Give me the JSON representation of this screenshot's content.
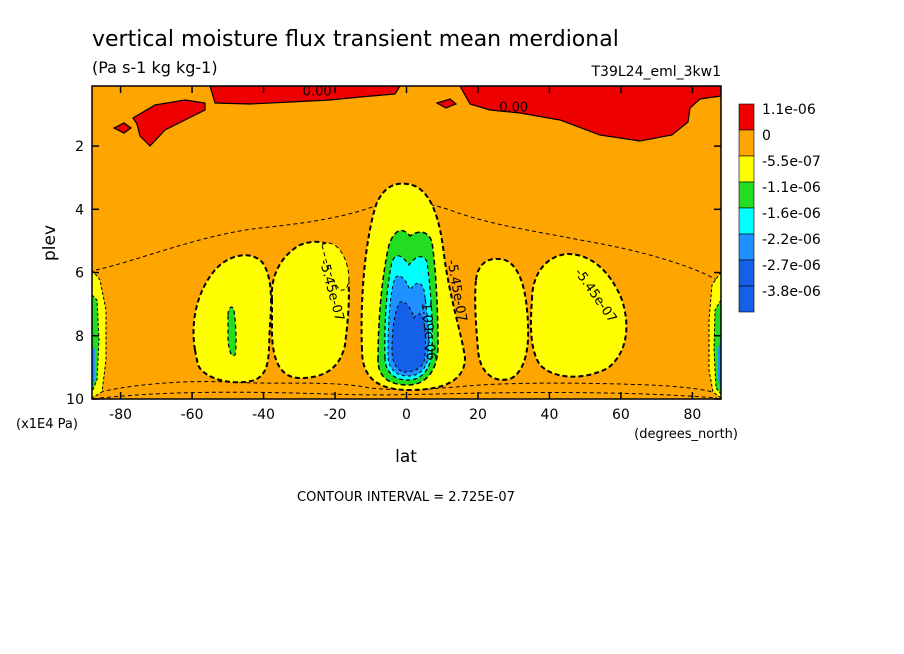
{
  "chart_data": {
    "type": "heatmap",
    "title": "vertical moisture flux transient mean merdional",
    "units": "(Pa s-1 kg kg-1)",
    "run_label": "T39L24_eml_3kw1",
    "xlabel": "lat",
    "x_unit_label": "(degrees_north)",
    "ylabel": "plev",
    "y_unit_label": "(x1E4 Pa)",
    "footer": "CONTOUR INTERVAL = 2.725E-07",
    "xlim": [
      -88,
      88
    ],
    "ylim": [
      10,
      0.1
    ],
    "y_inverted": true,
    "x_ticks": [
      -80,
      -60,
      -40,
      -20,
      0,
      20,
      40,
      60,
      80
    ],
    "x_tick_labels": [
      "-80",
      "-60",
      "-40",
      "-20",
      "0",
      "20",
      "40",
      "60",
      "80"
    ],
    "y_ticks": [
      2,
      4,
      6,
      8,
      10
    ],
    "y_tick_labels": [
      "2",
      "4",
      "6",
      "8",
      "10"
    ],
    "contour_labels": [
      {
        "text": "0.00",
        "lat": -25,
        "plev": 0.4
      },
      {
        "text": "0.00",
        "lat": 30,
        "plev": 0.9
      },
      {
        "text": "-5.45e-07",
        "lat": -22,
        "plev": 6.6
      },
      {
        "text": "-5.45e-07",
        "lat": 13,
        "plev": 6.6
      },
      {
        "text": "-5.45e-07",
        "lat": 52,
        "plev": 6.8
      },
      {
        "text": "-1.09e-06",
        "lat": 5,
        "plev": 7.8
      }
    ],
    "legend": {
      "placement": "right",
      "levels": [
        {
          "label": "1.1e-06",
          "color": "#ee0000"
        },
        {
          "label": "0",
          "color": "#ffa500"
        },
        {
          "label": "-5.5e-07",
          "color": "#ffff00"
        },
        {
          "label": "-1.1e-06",
          "color": "#22dd22"
        },
        {
          "label": "-1.6e-06",
          "color": "#00ffff"
        },
        {
          "label": "-2.2e-06",
          "color": "#1e90ff"
        },
        {
          "label": "-2.7e-06",
          "color": "#1560e8"
        },
        {
          "label": "-3.8e-06",
          "color": "#1560e8"
        }
      ]
    },
    "field_regions": [
      {
        "level": "positive",
        "color": "#ee0000",
        "description": "upper-level positive flux near top"
      },
      {
        "level": "0 to -5.5e-07",
        "color": "#ffa500",
        "description": "background"
      },
      {
        "level": "-5.5e-07 to -1.1e-06",
        "color": "#ffff00",
        "description": "midlatitude and equatorial lobes"
      },
      {
        "level": "-1.1e-06 to -1.6e-06",
        "color": "#22dd22",
        "description": "equatorial core and near -50"
      },
      {
        "level": "-1.6e-06 to -2.2e-06",
        "color": "#00ffff",
        "description": "equatorial core"
      },
      {
        "level": "below -2.2e-06",
        "color": "#1e90ff",
        "description": "equatorial minimum near plev 8-9"
      }
    ]
  }
}
